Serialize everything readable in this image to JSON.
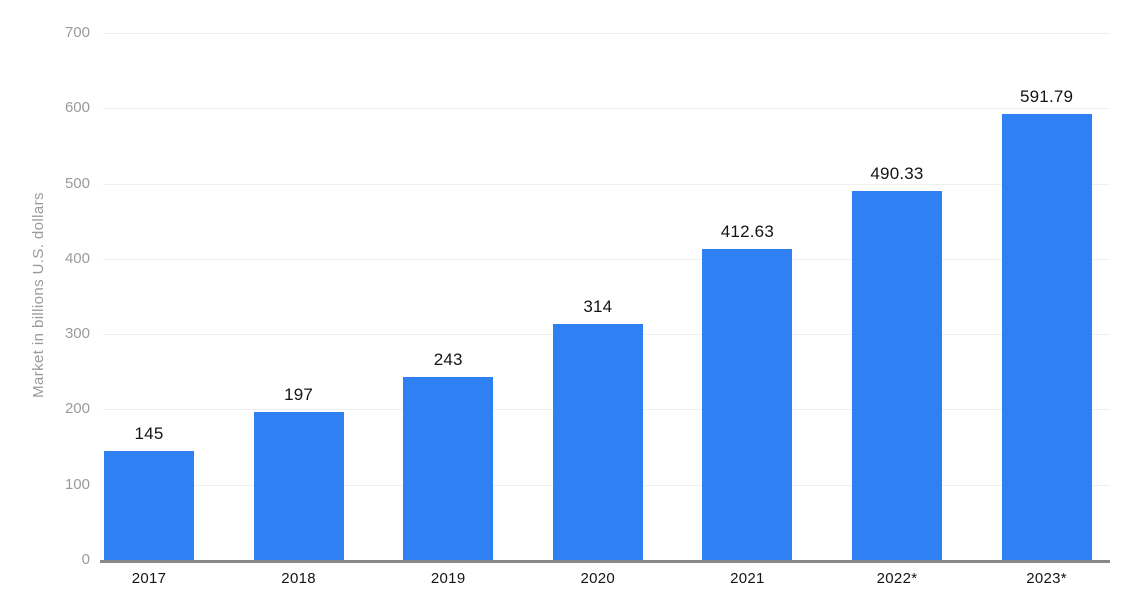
{
  "chart_data": {
    "type": "bar",
    "categories": [
      "2017",
      "2018",
      "2019",
      "2020",
      "2021",
      "2022*",
      "2023*"
    ],
    "values": [
      145,
      197,
      243,
      314,
      412.63,
      490.33,
      591.79
    ],
    "value_labels": [
      "145",
      "197",
      "243",
      "314",
      "412.63",
      "490.33",
      "591.79"
    ],
    "title": "",
    "xlabel": "",
    "ylabel": "Market in billions U.S. dollars",
    "ylim": [
      0,
      700
    ],
    "yticks": [
      700,
      600,
      500,
      400,
      300,
      200,
      100,
      0
    ],
    "grid": true,
    "legend": false,
    "bar_color": "#2f80f2"
  },
  "colors": {
    "bar": "#2f80f2",
    "gridline": "#efefef",
    "axis_line": "#898989",
    "tick_label": "#9b9b9b",
    "text": "#141414",
    "background": "#ffffff"
  }
}
